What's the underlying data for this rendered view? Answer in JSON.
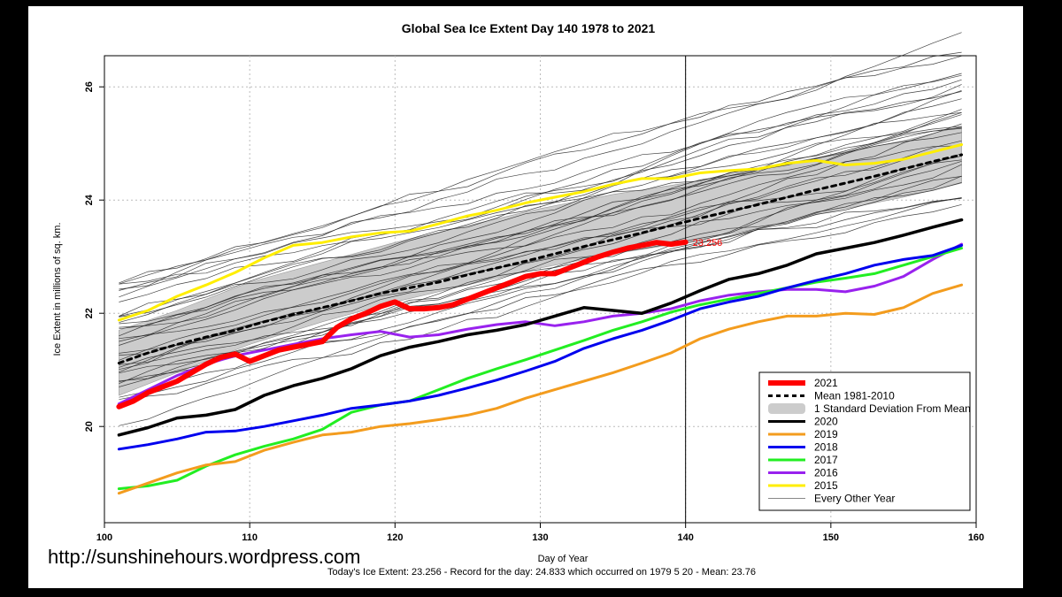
{
  "chart_data": {
    "type": "line",
    "title": "Global Sea Ice Extent Day 140 1978 to 2021",
    "xlabel": "Day of Year",
    "ylabel": "Ice Extent in millions of sq. km.",
    "xlim": [
      100,
      160
    ],
    "ylim": [
      18.3,
      26.55
    ],
    "xticks": [
      100,
      110,
      120,
      130,
      140,
      150,
      160
    ],
    "yticks": [
      20,
      22,
      24,
      26
    ],
    "grid": true,
    "current_day": 140,
    "current_value_label": "23.256",
    "std_band": {
      "name": "1 Standard Deviation From Mean",
      "x": [
        101,
        105,
        110,
        115,
        120,
        125,
        130,
        135,
        140,
        145,
        150,
        155,
        159
      ],
      "upper": [
        21.7,
        22.05,
        22.55,
        22.9,
        23.25,
        23.55,
        23.85,
        24.1,
        24.3,
        24.55,
        24.8,
        25.05,
        25.3
      ],
      "lower": [
        20.55,
        20.95,
        21.45,
        21.85,
        22.2,
        22.5,
        22.8,
        23.05,
        23.25,
        23.5,
        23.8,
        24.05,
        24.3
      ]
    },
    "series": [
      {
        "name": "2021",
        "color": "#ff0000",
        "width": 6,
        "x": [
          101,
          102,
          103,
          104,
          105,
          106,
          107,
          108,
          109,
          110,
          111,
          112,
          113,
          114,
          115,
          116,
          117,
          118,
          119,
          120,
          121,
          122,
          123,
          124,
          125,
          126,
          127,
          128,
          129,
          130,
          131,
          132,
          133,
          134,
          135,
          136,
          137,
          138,
          139,
          140
        ],
        "values": [
          20.35,
          20.45,
          20.6,
          20.7,
          20.8,
          20.95,
          21.1,
          21.22,
          21.28,
          21.15,
          21.25,
          21.35,
          21.4,
          21.45,
          21.5,
          21.75,
          21.9,
          22.0,
          22.12,
          22.2,
          22.08,
          22.08,
          22.1,
          22.15,
          22.25,
          22.35,
          22.45,
          22.55,
          22.65,
          22.7,
          22.7,
          22.8,
          22.9,
          23.0,
          23.08,
          23.15,
          23.2,
          23.25,
          23.22,
          23.256
        ]
      },
      {
        "name": "Mean 1981-2010",
        "color": "#000000",
        "width": 3,
        "dashed": true,
        "x": [
          101,
          103,
          105,
          107,
          109,
          111,
          113,
          115,
          117,
          119,
          121,
          123,
          125,
          127,
          129,
          131,
          133,
          135,
          137,
          139,
          141,
          143,
          145,
          147,
          149,
          151,
          153,
          155,
          157,
          159
        ],
        "values": [
          21.12,
          21.3,
          21.45,
          21.58,
          21.7,
          21.85,
          21.98,
          22.1,
          22.22,
          22.35,
          22.45,
          22.55,
          22.68,
          22.8,
          22.92,
          23.05,
          23.18,
          23.3,
          23.42,
          23.55,
          23.68,
          23.8,
          23.92,
          24.05,
          24.18,
          24.3,
          24.42,
          24.55,
          24.68,
          24.8
        ]
      },
      {
        "name": "2020",
        "color": "#000000",
        "width": 3.5,
        "x": [
          101,
          103,
          105,
          107,
          109,
          111,
          113,
          115,
          117,
          119,
          121,
          123,
          125,
          127,
          129,
          131,
          133,
          135,
          137,
          139,
          141,
          143,
          145,
          147,
          149,
          151,
          153,
          155,
          157,
          159
        ],
        "values": [
          19.85,
          19.98,
          20.15,
          20.2,
          20.3,
          20.55,
          20.72,
          20.85,
          21.02,
          21.25,
          21.4,
          21.5,
          21.62,
          21.7,
          21.8,
          21.95,
          22.1,
          22.05,
          22.0,
          22.18,
          22.4,
          22.6,
          22.7,
          22.85,
          23.05,
          23.15,
          23.25,
          23.38,
          23.52,
          23.65
        ]
      },
      {
        "name": "2019",
        "color": "#f39c1e",
        "width": 3,
        "x": [
          101,
          103,
          105,
          107,
          109,
          111,
          113,
          115,
          117,
          119,
          121,
          123,
          125,
          127,
          129,
          131,
          133,
          135,
          137,
          139,
          141,
          143,
          145,
          147,
          149,
          151,
          153,
          155,
          157,
          159
        ],
        "values": [
          18.82,
          19.0,
          19.18,
          19.32,
          19.38,
          19.58,
          19.72,
          19.85,
          19.9,
          20.0,
          20.05,
          20.12,
          20.2,
          20.32,
          20.5,
          20.65,
          20.8,
          20.95,
          21.12,
          21.3,
          21.55,
          21.72,
          21.85,
          21.95,
          21.95,
          22.0,
          21.98,
          22.1,
          22.35,
          22.5
        ]
      },
      {
        "name": "2018",
        "color": "#0000ee",
        "width": 3,
        "x": [
          101,
          103,
          105,
          107,
          109,
          111,
          113,
          115,
          117,
          119,
          121,
          123,
          125,
          127,
          129,
          131,
          133,
          135,
          137,
          139,
          141,
          143,
          145,
          147,
          149,
          151,
          153,
          155,
          157,
          159
        ],
        "values": [
          19.6,
          19.68,
          19.78,
          19.9,
          19.92,
          20.0,
          20.1,
          20.2,
          20.32,
          20.38,
          20.45,
          20.55,
          20.68,
          20.82,
          20.98,
          21.15,
          21.38,
          21.55,
          21.7,
          21.88,
          22.08,
          22.2,
          22.3,
          22.45,
          22.58,
          22.7,
          22.85,
          22.95,
          23.02,
          23.2
        ]
      },
      {
        "name": "2017",
        "color": "#22ee22",
        "width": 3,
        "x": [
          101,
          103,
          105,
          107,
          109,
          111,
          113,
          115,
          117,
          119,
          121,
          123,
          125,
          127,
          129,
          131,
          133,
          135,
          137,
          139,
          141,
          143,
          145,
          147,
          149,
          151,
          153,
          155,
          157,
          159
        ],
        "values": [
          18.9,
          18.95,
          19.05,
          19.3,
          19.5,
          19.65,
          19.78,
          19.95,
          20.25,
          20.38,
          20.45,
          20.65,
          20.85,
          21.02,
          21.18,
          21.35,
          21.52,
          21.7,
          21.85,
          22.02,
          22.15,
          22.25,
          22.35,
          22.45,
          22.55,
          22.62,
          22.7,
          22.85,
          23.0,
          23.15
        ]
      },
      {
        "name": "2016",
        "color": "#9922ee",
        "width": 3,
        "x": [
          101,
          103,
          105,
          107,
          109,
          111,
          113,
          115,
          117,
          119,
          121,
          123,
          125,
          127,
          129,
          131,
          133,
          135,
          137,
          139,
          141,
          143,
          145,
          147,
          149,
          151,
          153,
          155,
          157,
          159
        ],
        "values": [
          20.4,
          20.65,
          20.9,
          21.1,
          21.25,
          21.35,
          21.45,
          21.55,
          21.62,
          21.68,
          21.58,
          21.62,
          21.72,
          21.8,
          21.85,
          21.78,
          21.85,
          21.95,
          22.0,
          22.08,
          22.22,
          22.32,
          22.38,
          22.42,
          22.42,
          22.38,
          22.48,
          22.65,
          22.95,
          23.22
        ]
      },
      {
        "name": "2015",
        "color": "#ffee00",
        "width": 3,
        "x": [
          101,
          103,
          105,
          107,
          109,
          111,
          113,
          115,
          117,
          119,
          121,
          123,
          125,
          127,
          129,
          131,
          133,
          135,
          137,
          139,
          141,
          143,
          145,
          147,
          149,
          151,
          153,
          155,
          157,
          159
        ],
        "values": [
          21.88,
          22.05,
          22.3,
          22.5,
          22.72,
          22.98,
          23.2,
          23.25,
          23.35,
          23.42,
          23.45,
          23.58,
          23.72,
          23.82,
          23.95,
          24.05,
          24.15,
          24.28,
          24.38,
          24.38,
          24.48,
          24.52,
          24.55,
          24.65,
          24.7,
          24.62,
          24.65,
          24.72,
          24.85,
          24.98
        ]
      }
    ],
    "legend_entries": [
      {
        "label": "2021",
        "color": "#ff0000",
        "style": "thick"
      },
      {
        "label": "Mean 1981-2010",
        "color": "#000000",
        "style": "dashed"
      },
      {
        "label": "1 Standard Deviation From Mean",
        "color": "#cccccc",
        "style": "band"
      },
      {
        "label": "2020",
        "color": "#000000",
        "style": "line"
      },
      {
        "label": "2019",
        "color": "#f39c1e",
        "style": "line"
      },
      {
        "label": "2018",
        "color": "#0000ee",
        "style": "line"
      },
      {
        "label": "2017",
        "color": "#22ee22",
        "style": "line"
      },
      {
        "label": "2016",
        "color": "#9922ee",
        "style": "line"
      },
      {
        "label": "2015",
        "color": "#ffee00",
        "style": "line"
      },
      {
        "label": "Every Other Year",
        "color": "#888888",
        "style": "thin"
      }
    ],
    "legend_position": "bottom-right"
  },
  "footer": {
    "website": "http://sunshinehours.wordpress.com",
    "stats_line": "Today's Ice Extent: 23.256  - Record for the day: 24.833 which occurred on 1979 5 20  - Mean: 23.76"
  }
}
